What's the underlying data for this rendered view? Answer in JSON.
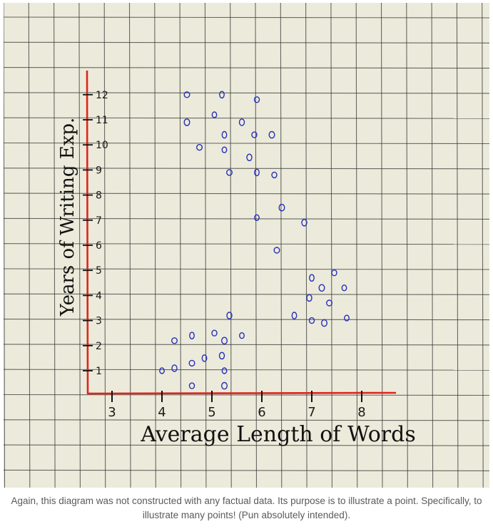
{
  "chart_data": {
    "type": "scatter",
    "xlabel": "Average Length of Words",
    "ylabel": "Years of Writing Exp.",
    "x_ticks": [
      "3",
      "4",
      "5",
      "6",
      "7",
      "8"
    ],
    "y_ticks": [
      "1",
      "2",
      "3",
      "4",
      "5",
      "6",
      "7",
      "8",
      "9",
      "10",
      "11",
      "12"
    ],
    "xlim": [
      2.5,
      9.2
    ],
    "ylim": [
      0,
      12.6
    ],
    "grid": true,
    "colors": {
      "points": "#2730b8",
      "axes": "#e0251b",
      "grid": "#3a3a3a",
      "paper": "#ecebdb"
    },
    "points": [
      {
        "x": 4.0,
        "y": 1.0
      },
      {
        "x": 4.25,
        "y": 1.1
      },
      {
        "x": 4.6,
        "y": 1.3
      },
      {
        "x": 4.85,
        "y": 1.5
      },
      {
        "x": 4.6,
        "y": 0.4
      },
      {
        "x": 5.25,
        "y": 0.4
      },
      {
        "x": 5.25,
        "y": 1.0
      },
      {
        "x": 5.2,
        "y": 1.6
      },
      {
        "x": 4.25,
        "y": 2.2
      },
      {
        "x": 4.6,
        "y": 2.4
      },
      {
        "x": 5.05,
        "y": 2.5
      },
      {
        "x": 5.25,
        "y": 2.2
      },
      {
        "x": 5.6,
        "y": 2.4
      },
      {
        "x": 5.35,
        "y": 3.2
      },
      {
        "x": 4.5,
        "y": 12.0
      },
      {
        "x": 5.2,
        "y": 12.0
      },
      {
        "x": 5.9,
        "y": 11.8
      },
      {
        "x": 4.5,
        "y": 10.9
      },
      {
        "x": 5.05,
        "y": 11.2
      },
      {
        "x": 5.6,
        "y": 10.9
      },
      {
        "x": 4.75,
        "y": 9.9
      },
      {
        "x": 5.25,
        "y": 10.4
      },
      {
        "x": 5.85,
        "y": 10.4
      },
      {
        "x": 6.2,
        "y": 10.4
      },
      {
        "x": 5.25,
        "y": 9.8
      },
      {
        "x": 5.75,
        "y": 9.5
      },
      {
        "x": 5.35,
        "y": 8.9
      },
      {
        "x": 5.9,
        "y": 8.9
      },
      {
        "x": 6.25,
        "y": 8.8
      },
      {
        "x": 6.4,
        "y": 7.5
      },
      {
        "x": 5.9,
        "y": 7.1
      },
      {
        "x": 6.85,
        "y": 6.9
      },
      {
        "x": 6.3,
        "y": 5.8
      },
      {
        "x": 7.0,
        "y": 4.7
      },
      {
        "x": 7.45,
        "y": 4.9
      },
      {
        "x": 7.2,
        "y": 4.3
      },
      {
        "x": 7.65,
        "y": 4.3
      },
      {
        "x": 6.95,
        "y": 3.9
      },
      {
        "x": 7.35,
        "y": 3.7
      },
      {
        "x": 6.65,
        "y": 3.2
      },
      {
        "x": 7.0,
        "y": 3.0
      },
      {
        "x": 7.25,
        "y": 2.9
      },
      {
        "x": 7.7,
        "y": 3.1
      }
    ]
  },
  "caption": "Again, this diagram was not constructed with any factual data. Its purpose is to illustrate a point. Specifically, to illustrate many points! (Pun absolutely intended)."
}
